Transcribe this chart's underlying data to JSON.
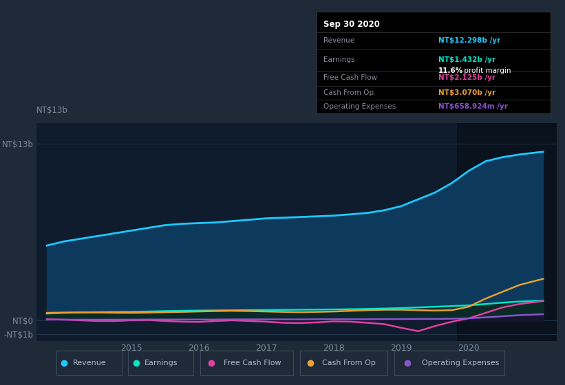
{
  "bg_color": "#1e2a38",
  "plot_bg_color": "#0f1c2e",
  "grid_color": "#2a3a4e",
  "text_color": "#7a8a99",
  "revenue_color": "#1ec8ff",
  "earnings_color": "#00e5c8",
  "free_cash_color": "#e040a0",
  "cash_from_op_color": "#e8a030",
  "op_expenses_color": "#8855cc",
  "revenue_fill_color": "#0d3a5c",
  "earnings_fill_color": "#0d3030",
  "info_box": {
    "title": "Sep 30 2020",
    "revenue_label": "Revenue",
    "revenue_value": "NT$12.298b",
    "earnings_label": "Earnings",
    "earnings_value": "NT$1.432b",
    "profit_margin": "11.6%",
    "profit_margin_suffix": " profit margin",
    "fcf_label": "Free Cash Flow",
    "fcf_value": "NT$2.125b",
    "cfo_label": "Cash From Op",
    "cfo_value": "NT$3.070b",
    "opex_label": "Operating Expenses",
    "opex_value": "NT$658.924m"
  },
  "legend": [
    {
      "label": "Revenue",
      "color": "#1ec8ff"
    },
    {
      "label": "Earnings",
      "color": "#00e5c8"
    },
    {
      "label": "Free Cash Flow",
      "color": "#e040a0"
    },
    {
      "label": "Cash From Op",
      "color": "#e8a030"
    },
    {
      "label": "Operating Expenses",
      "color": "#8855cc"
    }
  ],
  "ylim": [
    -1.5,
    14.5
  ],
  "xlim_start": 2013.6,
  "xlim_end": 2021.3,
  "ytick_values": [
    13,
    0,
    -1
  ],
  "ytick_labels": [
    "NT$13b",
    "NT$0",
    "-NT$1b"
  ],
  "xtick_positions": [
    2015.0,
    2016.0,
    2017.0,
    2018.0,
    2019.0,
    2020.0
  ],
  "xtick_labels": [
    "2015",
    "2016",
    "2017",
    "2018",
    "2019",
    "2020"
  ],
  "shade_start": 2019.83,
  "shade_end": 2021.3,
  "revenue_x": [
    2013.75,
    2014.0,
    2014.25,
    2014.5,
    2014.75,
    2015.0,
    2015.25,
    2015.5,
    2015.75,
    2016.0,
    2016.25,
    2016.5,
    2016.75,
    2017.0,
    2017.25,
    2017.5,
    2017.75,
    2018.0,
    2018.25,
    2018.5,
    2018.75,
    2019.0,
    2019.25,
    2019.5,
    2019.75,
    2020.0,
    2020.25,
    2020.5,
    2020.75,
    2021.1
  ],
  "revenue_y": [
    5.5,
    5.8,
    6.0,
    6.2,
    6.4,
    6.6,
    6.8,
    7.0,
    7.1,
    7.15,
    7.2,
    7.3,
    7.4,
    7.5,
    7.55,
    7.6,
    7.65,
    7.7,
    7.8,
    7.9,
    8.1,
    8.4,
    8.9,
    9.4,
    10.1,
    11.0,
    11.7,
    12.0,
    12.2,
    12.4
  ],
  "earnings_x": [
    2013.75,
    2014.0,
    2014.25,
    2014.5,
    2014.75,
    2015.0,
    2015.25,
    2015.5,
    2015.75,
    2016.0,
    2016.25,
    2016.5,
    2016.75,
    2017.0,
    2017.25,
    2017.5,
    2017.75,
    2018.0,
    2018.25,
    2018.5,
    2018.75,
    2019.0,
    2019.25,
    2019.5,
    2019.75,
    2020.0,
    2020.25,
    2020.5,
    2020.75,
    2021.1
  ],
  "earnings_y": [
    0.5,
    0.55,
    0.58,
    0.6,
    0.62,
    0.63,
    0.65,
    0.68,
    0.7,
    0.72,
    0.73,
    0.74,
    0.75,
    0.76,
    0.77,
    0.78,
    0.79,
    0.8,
    0.82,
    0.84,
    0.87,
    0.9,
    0.95,
    1.0,
    1.05,
    1.1,
    1.2,
    1.3,
    1.38,
    1.45
  ],
  "fcf_x": [
    2013.75,
    2014.0,
    2014.25,
    2014.5,
    2014.75,
    2015.0,
    2015.25,
    2015.5,
    2015.75,
    2016.0,
    2016.25,
    2016.5,
    2016.75,
    2017.0,
    2017.25,
    2017.5,
    2017.75,
    2018.0,
    2018.25,
    2018.5,
    2018.75,
    2019.0,
    2019.25,
    2019.5,
    2019.75,
    2020.0,
    2020.25,
    2020.5,
    2020.75,
    2021.1
  ],
  "fcf_y": [
    0.08,
    0.05,
    0.0,
    -0.05,
    -0.05,
    0.0,
    0.02,
    -0.05,
    -0.1,
    -0.12,
    -0.05,
    0.0,
    -0.05,
    -0.1,
    -0.18,
    -0.2,
    -0.15,
    -0.08,
    -0.1,
    -0.18,
    -0.28,
    -0.55,
    -0.8,
    -0.42,
    -0.1,
    0.15,
    0.55,
    0.95,
    1.2,
    1.42
  ],
  "cfo_x": [
    2013.75,
    2014.0,
    2014.25,
    2014.5,
    2014.75,
    2015.0,
    2015.25,
    2015.5,
    2015.75,
    2016.0,
    2016.25,
    2016.5,
    2016.75,
    2017.0,
    2017.25,
    2017.5,
    2017.75,
    2018.0,
    2018.25,
    2018.5,
    2018.75,
    2019.0,
    2019.25,
    2019.5,
    2019.75,
    2020.0,
    2020.25,
    2020.5,
    2020.75,
    2021.1
  ],
  "cfo_y": [
    0.55,
    0.57,
    0.58,
    0.58,
    0.56,
    0.55,
    0.57,
    0.6,
    0.62,
    0.65,
    0.68,
    0.7,
    0.68,
    0.65,
    0.62,
    0.6,
    0.62,
    0.65,
    0.7,
    0.75,
    0.78,
    0.78,
    0.75,
    0.72,
    0.75,
    1.0,
    1.6,
    2.1,
    2.6,
    3.05
  ],
  "opex_x": [
    2013.75,
    2014.0,
    2014.25,
    2014.5,
    2014.75,
    2015.0,
    2015.25,
    2015.5,
    2015.75,
    2016.0,
    2016.25,
    2016.5,
    2016.75,
    2017.0,
    2017.25,
    2017.5,
    2017.75,
    2018.0,
    2018.25,
    2018.5,
    2018.75,
    2019.0,
    2019.25,
    2019.5,
    2019.75,
    2020.0,
    2020.25,
    2020.5,
    2020.75,
    2021.1
  ],
  "opex_y": [
    0.05,
    0.05,
    0.05,
    0.05,
    0.05,
    0.05,
    0.06,
    0.06,
    0.06,
    0.06,
    0.06,
    0.07,
    0.07,
    0.07,
    0.07,
    0.07,
    0.08,
    0.08,
    0.08,
    0.08,
    0.09,
    0.09,
    0.1,
    0.1,
    0.12,
    0.15,
    0.22,
    0.3,
    0.38,
    0.45
  ]
}
